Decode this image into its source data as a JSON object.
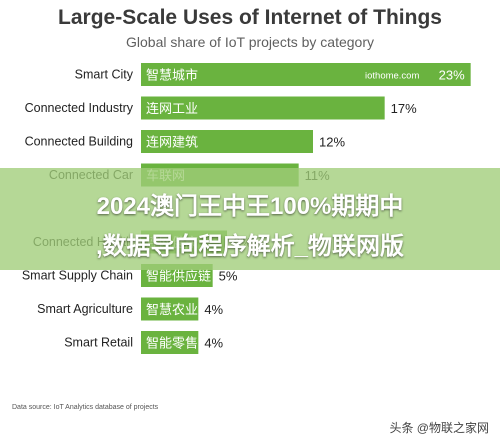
{
  "header": {
    "title": "Large-Scale Uses of Internet of Things",
    "subtitle": "Global share of IoT projects by category"
  },
  "chart_data": {
    "type": "bar",
    "orientation": "horizontal",
    "title": "Large-Scale Uses of Internet of Things",
    "subtitle": "Global share of IoT projects by category",
    "categories": [
      "Smart City",
      "Connected Industry",
      "Connected Building",
      "Connected Car",
      "",
      "Connected Health",
      "Smart Supply Chain",
      "Smart Agriculture",
      "Smart Retail"
    ],
    "bar_labels": [
      "智慧城市",
      "连网工业",
      "连网建筑",
      "车联网",
      "",
      "连网健康",
      "智能供应链",
      "智慧农业",
      "智能零售"
    ],
    "values": [
      23,
      17,
      12,
      11,
      null,
      6,
      5,
      4,
      4
    ],
    "value_labels": [
      "23%",
      "17%",
      "12%",
      "11%",
      "",
      "6%",
      "5%",
      "4%",
      "4%"
    ],
    "series_color": "#6ab33f",
    "source_credit": "iothome.com",
    "xlim": [
      0,
      24
    ],
    "grid": false,
    "legend": "none"
  },
  "footer": {
    "source": "Data source: IoT Analytics database of projects"
  },
  "overlay": {
    "line1": "2024澳门王中王100%期期中",
    "line2": ",数据导向程序解析_物联网版",
    "color": "#a0cd78"
  },
  "watermark": {
    "text": "头条 @物联之家网"
  }
}
